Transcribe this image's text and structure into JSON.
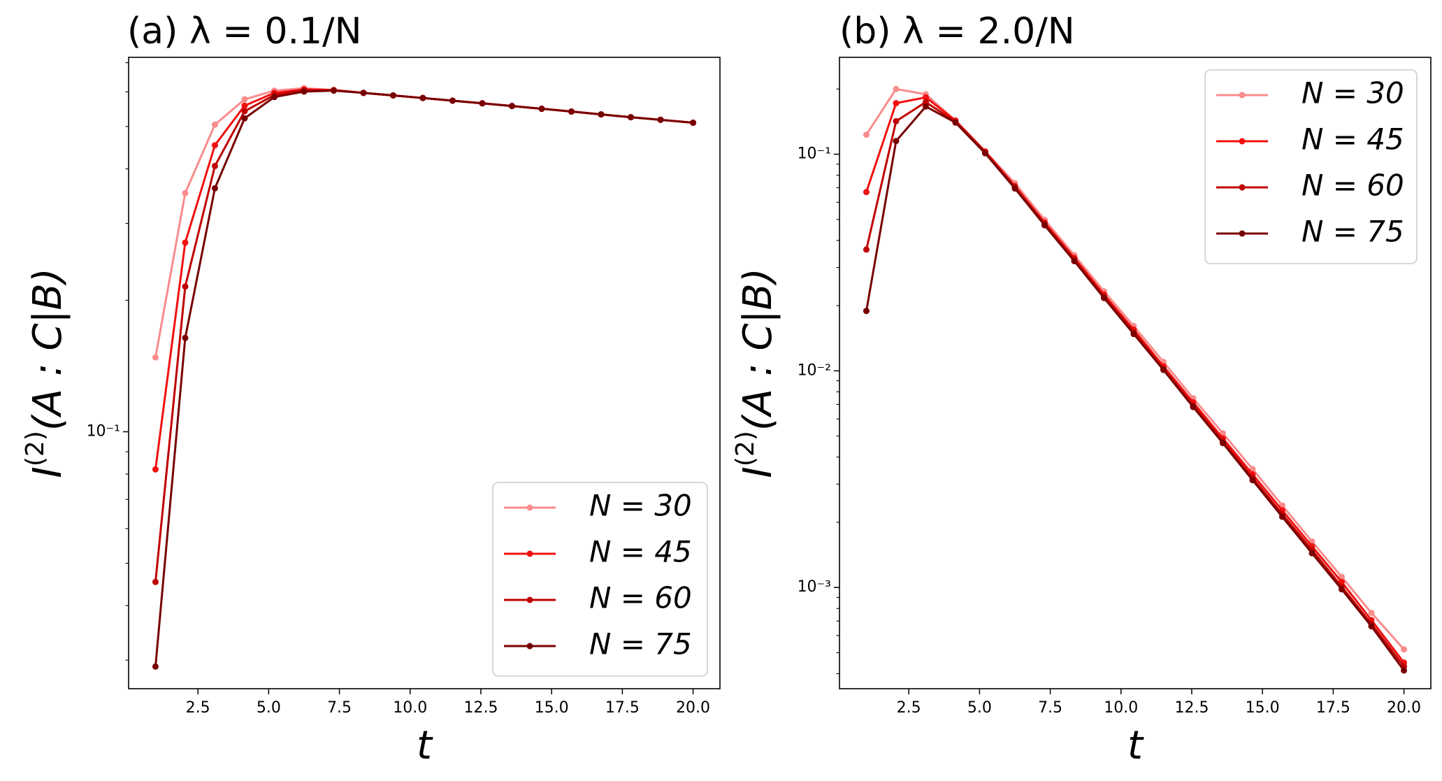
{
  "chart_data": [
    {
      "type": "line",
      "title": "(a) λ = 0.1/N",
      "xlabel": "t",
      "ylabel": "I(2)(A : C|B)",
      "yscale": "log",
      "xlim": [
        0.05,
        20.95
      ],
      "ylim": [
        0.0258,
        0.72
      ],
      "xticks": [
        "2.5",
        "5.0",
        "7.5",
        "10.0",
        "12.5",
        "15.0",
        "17.5",
        "20.0"
      ],
      "yticks": [
        {
          "value": 0.1,
          "label": "10⁻¹"
        }
      ],
      "legend": "lower-right",
      "x": [
        1.0,
        2.05,
        3.1,
        4.15,
        5.2,
        6.25,
        7.3,
        8.35,
        9.4,
        10.45,
        11.5,
        12.55,
        13.6,
        14.65,
        15.7,
        16.75,
        17.8,
        18.85,
        20.0
      ],
      "series": [
        {
          "name": "N = 30",
          "color": "#fa8c8c",
          "values": [
            0.148,
            0.352,
            0.505,
            0.577,
            0.604,
            0.612,
            0.606,
            0.597,
            0.589,
            0.581,
            0.573,
            0.565,
            0.557,
            0.549,
            0.541,
            0.533,
            0.525,
            0.518,
            0.51
          ]
        },
        {
          "name": "N = 45",
          "color": "#f21010",
          "values": [
            0.082,
            0.271,
            0.453,
            0.558,
            0.597,
            0.608,
            0.606,
            0.597,
            0.589,
            0.581,
            0.573,
            0.565,
            0.557,
            0.549,
            0.541,
            0.533,
            0.525,
            0.518,
            0.51
          ]
        },
        {
          "name": "N = 60",
          "color": "#c00000",
          "values": [
            0.0453,
            0.215,
            0.406,
            0.542,
            0.59,
            0.605,
            0.605,
            0.597,
            0.589,
            0.581,
            0.573,
            0.565,
            0.557,
            0.549,
            0.541,
            0.533,
            0.525,
            0.518,
            0.51
          ]
        },
        {
          "name": "N = 75",
          "color": "#780000",
          "values": [
            0.029,
            0.164,
            0.361,
            0.522,
            0.584,
            0.601,
            0.604,
            0.597,
            0.589,
            0.581,
            0.573,
            0.565,
            0.557,
            0.549,
            0.541,
            0.533,
            0.525,
            0.518,
            0.51
          ]
        }
      ]
    },
    {
      "type": "line",
      "title": "(b) λ = 2.0/N",
      "xlabel": "t",
      "ylabel": "I(2)(A : C|B)",
      "yscale": "log",
      "xlim": [
        0.05,
        20.95
      ],
      "ylim": [
        0.000341,
        0.28
      ],
      "xticks": [
        "2.5",
        "5.0",
        "7.5",
        "10.0",
        "12.5",
        "15.0",
        "17.5",
        "20.0"
      ],
      "yticks": [
        {
          "value": 0.1,
          "label": "10⁻¹"
        },
        {
          "value": 0.01,
          "label": "10⁻²"
        },
        {
          "value": 0.001,
          "label": "10⁻³"
        }
      ],
      "legend": "upper-right",
      "x": [
        1.0,
        2.05,
        3.1,
        4.15,
        5.2,
        6.25,
        7.3,
        8.35,
        9.4,
        10.45,
        11.5,
        12.55,
        13.6,
        14.65,
        15.7,
        16.75,
        17.8,
        18.85,
        20.0
      ],
      "series": [
        {
          "name": "N = 30",
          "color": "#fa8c8c",
          "values": [
            0.123,
            0.2,
            0.189,
            0.143,
            0.103,
            0.0735,
            0.0498,
            0.0342,
            0.0233,
            0.0161,
            0.011,
            0.00748,
            0.00515,
            0.00352,
            0.00239,
            0.00163,
            0.00112,
            0.000764,
            0.000518
          ]
        },
        {
          "name": "N = 45",
          "color": "#f21010",
          "values": [
            0.0669,
            0.172,
            0.183,
            0.143,
            0.103,
            0.0713,
            0.0484,
            0.0332,
            0.0225,
            0.0155,
            0.0105,
            0.00716,
            0.00488,
            0.00333,
            0.00227,
            0.00155,
            0.00106,
            0.000707,
            0.00045
          ]
        },
        {
          "name": "N = 60",
          "color": "#c00000",
          "values": [
            0.0363,
            0.142,
            0.174,
            0.141,
            0.102,
            0.0704,
            0.0477,
            0.0326,
            0.022,
            0.0151,
            0.0102,
            0.00693,
            0.00473,
            0.00321,
            0.00218,
            0.00149,
            0.00101,
            0.000679,
            0.000432
          ]
        },
        {
          "name": "N = 75",
          "color": "#780000",
          "values": [
            0.0189,
            0.115,
            0.166,
            0.14,
            0.101,
            0.0695,
            0.047,
            0.0321,
            0.0217,
            0.0148,
            0.0101,
            0.00681,
            0.00464,
            0.00313,
            0.00212,
            0.00144,
            0.000981,
            0.000662,
            0.000414
          ]
        }
      ]
    }
  ]
}
